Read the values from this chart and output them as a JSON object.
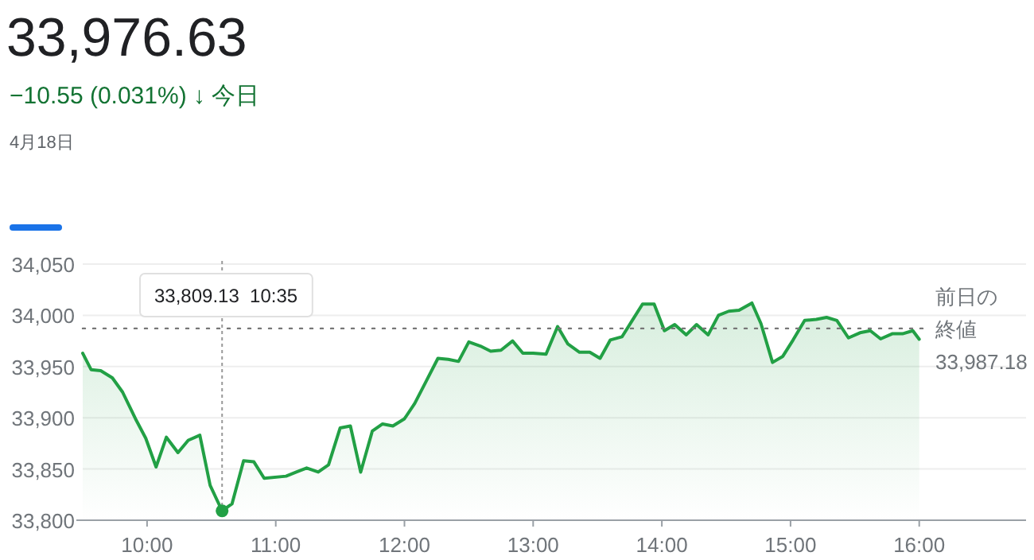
{
  "chart_data": {
    "type": "area",
    "title": "33,976.63",
    "subtitle": "−10.55 (0.031%) ↓ 今日",
    "annotations": [
      "4月18日",
      {
        "text": "33,809.13  10:35",
        "x": 10.583,
        "y": 33809.13
      }
    ],
    "x": [
      9.5,
      9.565,
      9.64,
      9.73,
      9.81,
      9.91,
      9.99,
      10.07,
      10.15,
      10.24,
      10.32,
      10.41,
      10.49,
      10.583,
      10.66,
      10.75,
      10.83,
      10.91,
      11.08,
      11.16,
      11.24,
      11.33,
      11.41,
      11.5,
      11.58,
      11.66,
      11.75,
      11.83,
      11.91,
      12.0,
      12.08,
      12.17,
      12.26,
      12.34,
      12.42,
      12.5,
      12.59,
      12.67,
      12.75,
      12.84,
      12.92,
      13.0,
      13.1,
      13.19,
      13.27,
      13.36,
      13.44,
      13.52,
      13.6,
      13.69,
      13.77,
      13.85,
      13.94,
      14.02,
      14.1,
      14.19,
      14.27,
      14.36,
      14.44,
      14.52,
      14.6,
      14.7,
      14.77,
      14.86,
      14.94,
      15.02,
      15.11,
      15.2,
      15.28,
      15.36,
      15.45,
      15.54,
      15.62,
      15.7,
      15.79,
      15.87,
      15.95,
      16.0
    ],
    "series": [
      {
        "color": "#22a045",
        "values": [
          33963,
          33947,
          33946,
          33939,
          33925,
          33899,
          33880,
          33852,
          33881,
          33866,
          33878,
          33883,
          33834,
          33809.13,
          33816,
          33858,
          33857,
          33841,
          33843,
          33847,
          33851,
          33847,
          33854,
          33890,
          33892,
          33847,
          33887,
          33894,
          33892,
          33899,
          33914,
          33936,
          33958,
          33957,
          33955,
          33974,
          33970,
          33965,
          33966,
          33975,
          33963,
          33963,
          33962,
          33989,
          33972,
          33964,
          33964,
          33958,
          33976,
          33979,
          33995,
          34011,
          34011,
          33985,
          33991,
          33981,
          33991,
          33981,
          34000,
          34004,
          34005,
          34012,
          33992,
          33954,
          33960,
          33976,
          33995,
          33996,
          33998,
          33995,
          33978,
          33983,
          33985,
          33977,
          33982,
          33982,
          33985,
          33976.63
        ]
      }
    ],
    "xlim": [
      9.5,
      16.83
    ],
    "ylim": [
      33800,
      34050
    ],
    "xticks": [
      {
        "value": 10,
        "label": "10:00"
      },
      {
        "value": 11,
        "label": "11:00"
      },
      {
        "value": 12,
        "label": "12:00"
      },
      {
        "value": 13,
        "label": "13:00"
      },
      {
        "value": 14,
        "label": "14:00"
      },
      {
        "value": 15,
        "label": "15:00"
      },
      {
        "value": 16,
        "label": "16:00"
      }
    ],
    "yticks": [
      {
        "value": 33800,
        "label": "33,800"
      },
      {
        "value": 33850,
        "label": "33,850"
      },
      {
        "value": 33900,
        "label": "33,900"
      },
      {
        "value": 33950,
        "label": "33,950"
      },
      {
        "value": 34000,
        "label": "34,000"
      },
      {
        "value": 34050,
        "label": "34,050"
      }
    ],
    "grid": "y",
    "ref_lines": [
      {
        "axis": "y",
        "value": 33987.18,
        "label": "前日の終値 33,987.18",
        "color": "#777777",
        "line_style": "dotted"
      }
    ]
  }
}
